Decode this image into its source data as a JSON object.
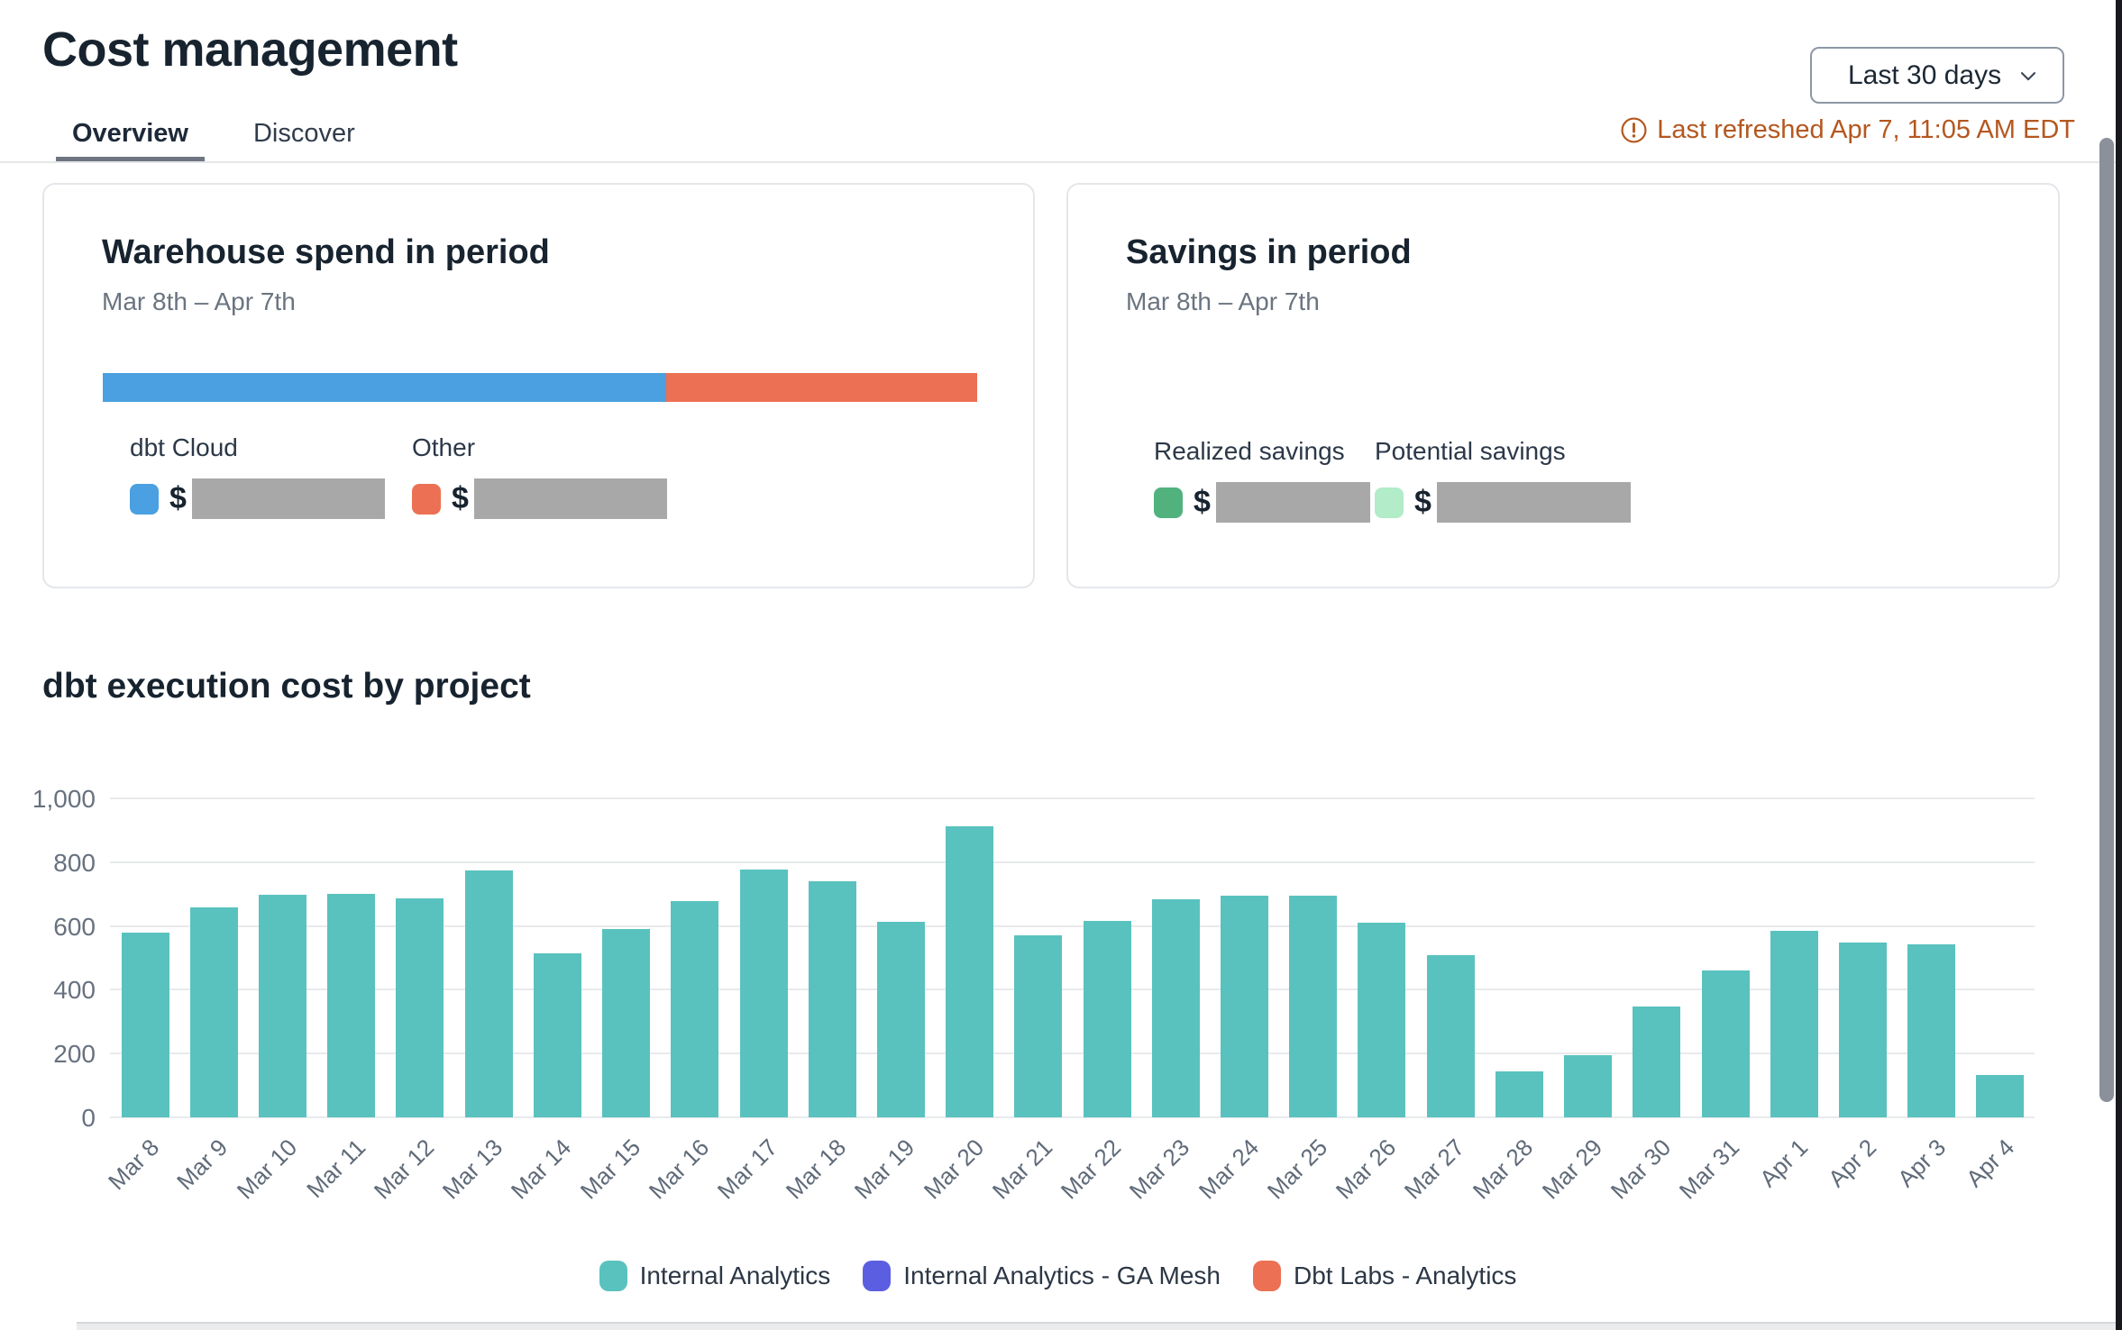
{
  "page": {
    "title": "Cost management"
  },
  "header": {
    "date_range": "Last 30 days",
    "last_refreshed": "Last refreshed Apr 7, 11:05 AM EDT"
  },
  "tabs": [
    {
      "label": "Overview",
      "active": true
    },
    {
      "label": "Discover",
      "active": false
    }
  ],
  "warehouse_card": {
    "title": "Warehouse spend in period",
    "subtitle": "Mar 8th – Apr 7th",
    "stacked_bar": [
      {
        "name": "dbt Cloud",
        "color": "#4aa0e0",
        "fraction": 0.644
      },
      {
        "name": "Other",
        "color": "#ec7053",
        "fraction": 0.356
      }
    ],
    "items": [
      {
        "label": "dbt Cloud",
        "color": "#4aa0e0",
        "currency": "$",
        "value_hidden": true
      },
      {
        "label": "Other",
        "color": "#ec7053",
        "currency": "$",
        "value_hidden": true
      }
    ]
  },
  "savings_card": {
    "title": "Savings in period",
    "subtitle": "Mar 8th – Apr 7th",
    "items": [
      {
        "label": "Realized savings",
        "color": "#51b27e",
        "currency": "$",
        "value_hidden": true
      },
      {
        "label": "Potential savings",
        "color": "#b2ecc8",
        "currency": "$",
        "value_hidden": true
      }
    ]
  },
  "chart_section_title": "dbt execution cost by project",
  "chart_data": {
    "type": "bar",
    "title": "dbt execution cost by project",
    "categories": [
      "Mar 8",
      "Mar 9",
      "Mar 10",
      "Mar 11",
      "Mar 12",
      "Mar 13",
      "Mar 14",
      "Mar 15",
      "Mar 16",
      "Mar 17",
      "Mar 18",
      "Mar 19",
      "Mar 20",
      "Mar 21",
      "Mar 22",
      "Mar 23",
      "Mar 24",
      "Mar 25",
      "Mar 26",
      "Mar 27",
      "Mar 28",
      "Mar 29",
      "Mar 30",
      "Mar 31",
      "Apr 1",
      "Apr 2",
      "Apr 3",
      "Apr 4"
    ],
    "series": [
      {
        "name": "Internal Analytics",
        "color": "#59c2be",
        "values": [
          578,
          659,
          697,
          701,
          687,
          774,
          515,
          590,
          677,
          778,
          740,
          612,
          913,
          570,
          616,
          684,
          696,
          694,
          611,
          509,
          143,
          195,
          348,
          460,
          585,
          548,
          542,
          134
        ]
      }
    ],
    "legend": [
      {
        "label": "Internal Analytics",
        "color": "#59c2be"
      },
      {
        "label": "Internal Analytics - GA Mesh",
        "color": "#5b5ee1"
      },
      {
        "label": "Dbt Labs - Analytics",
        "color": "#ec7053"
      }
    ],
    "xlabel": "",
    "ylabel": "",
    "ylim": [
      0,
      1000
    ],
    "yticks": [
      0,
      200,
      400,
      600,
      800,
      1000
    ],
    "ytick_labels": [
      "0",
      "200",
      "400",
      "600",
      "800",
      "1,000"
    ],
    "grid": true,
    "legend_position": "bottom"
  }
}
